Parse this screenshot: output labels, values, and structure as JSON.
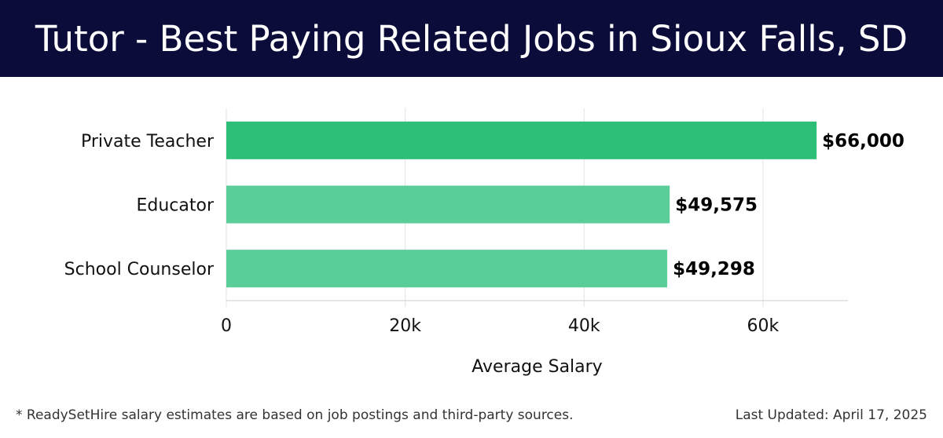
{
  "header": {
    "title": "Tutor - Best Paying Related Jobs in Sioux Falls, SD"
  },
  "chart_data": {
    "type": "bar",
    "orientation": "horizontal",
    "categories": [
      "Private Teacher",
      "Educator",
      "School Counselor"
    ],
    "values": [
      66000,
      49575,
      49298
    ],
    "value_labels": [
      "$66,000",
      "$49,575",
      "$49,298"
    ],
    "colors": [
      "#2dbf78",
      "#5acd98",
      "#5acd98"
    ],
    "xlabel": "Average Salary",
    "ylabel": "",
    "xlim": [
      0,
      69500
    ],
    "xticks": [
      0,
      20000,
      40000,
      60000
    ],
    "xtick_labels": [
      "0",
      "20k",
      "40k",
      "60k"
    ],
    "grid": "vertical"
  },
  "footer": {
    "note": "* ReadySetHire salary estimates are based on job postings and third-party sources.",
    "updated": "Last Updated: April 17, 2025"
  }
}
